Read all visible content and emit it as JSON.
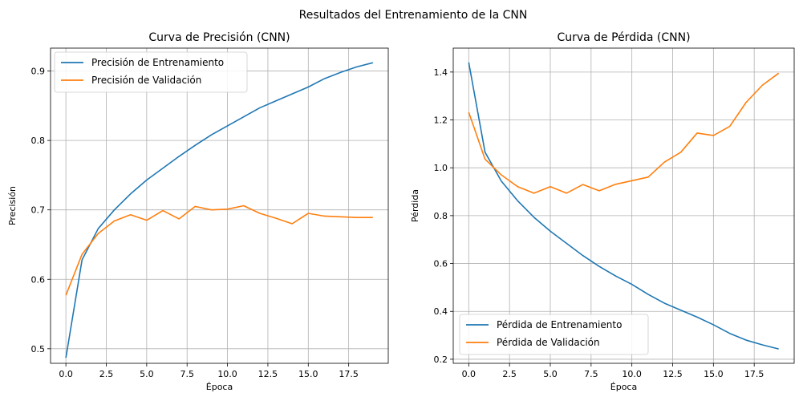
{
  "suptitle": "Resultados del Entrenamiento de la CNN",
  "colors": {
    "train": "#1f77b4",
    "val": "#ff7f0e",
    "grid": "#b0b0b0",
    "axis": "#000000"
  },
  "chart_data": [
    {
      "type": "line",
      "title": "Curva de Precisión (CNN)",
      "xlabel": "Época",
      "ylabel": "Precisión",
      "xlim": [
        -0.95,
        19.95
      ],
      "ylim": [
        0.479,
        0.933
      ],
      "xticks": [
        0,
        2.5,
        5,
        7.5,
        10,
        12.5,
        15,
        17.5
      ],
      "xtick_labels": [
        "0.0",
        "2.5",
        "5.0",
        "7.5",
        "10.0",
        "12.5",
        "15.0",
        "17.5"
      ],
      "yticks": [
        0.5,
        0.6,
        0.7,
        0.8,
        0.9
      ],
      "ytick_labels": [
        "0.5",
        "0.6",
        "0.7",
        "0.8",
        "0.9"
      ],
      "grid": true,
      "legend": "upper left",
      "x": [
        0,
        1,
        2,
        3,
        4,
        5,
        6,
        7,
        8,
        9,
        10,
        11,
        12,
        13,
        14,
        15,
        16,
        17,
        18,
        19
      ],
      "series": [
        {
          "name": "Precisión de Entrenamiento",
          "color": "#1f77b4",
          "values": [
            0.487,
            0.628,
            0.673,
            0.7,
            0.723,
            0.743,
            0.76,
            0.777,
            0.793,
            0.808,
            0.821,
            0.834,
            0.847,
            0.857,
            0.867,
            0.877,
            0.889,
            0.898,
            0.906,
            0.912
          ]
        },
        {
          "name": "Precisión de Validación",
          "color": "#ff7f0e",
          "values": [
            0.577,
            0.636,
            0.666,
            0.684,
            0.693,
            0.685,
            0.699,
            0.687,
            0.705,
            0.7,
            0.701,
            0.706,
            0.695,
            0.688,
            0.68,
            0.695,
            0.691,
            0.69,
            0.689,
            0.689
          ]
        }
      ]
    },
    {
      "type": "line",
      "title": "Curva de Pérdida (CNN)",
      "xlabel": "Época",
      "ylabel": "Pérdida",
      "xlim": [
        -0.95,
        19.95
      ],
      "ylim": [
        0.183,
        1.5
      ],
      "xticks": [
        0,
        2.5,
        5,
        7.5,
        10,
        12.5,
        15,
        17.5
      ],
      "xtick_labels": [
        "0.0",
        "2.5",
        "5.0",
        "7.5",
        "10.0",
        "12.5",
        "15.0",
        "17.5"
      ],
      "yticks": [
        0.2,
        0.4,
        0.6,
        0.8,
        1.0,
        1.2,
        1.4
      ],
      "ytick_labels": [
        "0.2",
        "0.4",
        "0.6",
        "0.8",
        "1.0",
        "1.2",
        "1.4"
      ],
      "grid": true,
      "legend": "lower left",
      "x": [
        0,
        1,
        2,
        3,
        4,
        5,
        6,
        7,
        8,
        9,
        10,
        11,
        12,
        13,
        14,
        15,
        16,
        17,
        18,
        19
      ],
      "series": [
        {
          "name": "Pérdida de Entrenamiento",
          "color": "#1f77b4",
          "values": [
            1.44,
            1.065,
            0.944,
            0.862,
            0.793,
            0.735,
            0.684,
            0.633,
            0.588,
            0.548,
            0.513,
            0.471,
            0.434,
            0.405,
            0.376,
            0.344,
            0.308,
            0.28,
            0.26,
            0.243
          ]
        },
        {
          "name": "Pérdida de Validación",
          "color": "#ff7f0e",
          "values": [
            1.232,
            1.036,
            0.97,
            0.921,
            0.894,
            0.921,
            0.894,
            0.93,
            0.904,
            0.931,
            0.946,
            0.961,
            1.024,
            1.065,
            1.145,
            1.135,
            1.173,
            1.273,
            1.345,
            1.395
          ]
        }
      ]
    }
  ]
}
